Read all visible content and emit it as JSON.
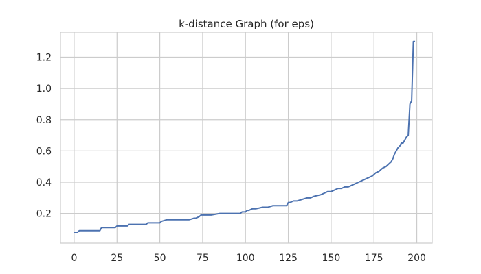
{
  "chart_data": {
    "type": "line",
    "title": "k-distance Graph (for eps)",
    "xlabel": "",
    "ylabel": "",
    "xlim": [
      -8,
      209
    ],
    "ylim": [
      0.01,
      1.36
    ],
    "grid": true,
    "x_ticks": [
      0,
      25,
      50,
      75,
      100,
      125,
      150,
      175,
      200
    ],
    "y_ticks": [
      0.2,
      0.4,
      0.6,
      0.8,
      1.0,
      1.2
    ],
    "y_tick_labels": [
      "0.2",
      "0.4",
      "0.6",
      "0.8",
      "1.0",
      "1.2"
    ],
    "colors": {
      "line": "#4c72b0",
      "grid": "#cccccc",
      "axes_edge": "#cccccc",
      "text": "#262626"
    },
    "series": [
      {
        "x": [
          0,
          2,
          3,
          9,
          15,
          16,
          24,
          25,
          31,
          32,
          39,
          42,
          43,
          48,
          50,
          51,
          54,
          58,
          65,
          67,
          70,
          71,
          73,
          74,
          80,
          85,
          90,
          92,
          97,
          98,
          100,
          101,
          102,
          104,
          106,
          110,
          113,
          116,
          119,
          124,
          125,
          126,
          128,
          130,
          133,
          136,
          138,
          140,
          144,
          146,
          148,
          150,
          152,
          154,
          156,
          158,
          160,
          162,
          164,
          166,
          168,
          170,
          172,
          174,
          176,
          178,
          180,
          182,
          184,
          185,
          186,
          187,
          188,
          189,
          190,
          191,
          192,
          193,
          194,
          195,
          196,
          197,
          198,
          199
        ],
        "y": [
          0.08,
          0.08,
          0.09,
          0.09,
          0.09,
          0.11,
          0.11,
          0.12,
          0.12,
          0.13,
          0.13,
          0.13,
          0.14,
          0.14,
          0.14,
          0.15,
          0.16,
          0.16,
          0.16,
          0.16,
          0.17,
          0.17,
          0.18,
          0.19,
          0.19,
          0.2,
          0.2,
          0.2,
          0.2,
          0.21,
          0.21,
          0.22,
          0.22,
          0.23,
          0.23,
          0.24,
          0.24,
          0.25,
          0.25,
          0.25,
          0.27,
          0.27,
          0.28,
          0.28,
          0.29,
          0.3,
          0.3,
          0.31,
          0.32,
          0.33,
          0.34,
          0.34,
          0.35,
          0.36,
          0.36,
          0.37,
          0.37,
          0.38,
          0.39,
          0.4,
          0.41,
          0.42,
          0.43,
          0.44,
          0.46,
          0.47,
          0.49,
          0.5,
          0.52,
          0.53,
          0.55,
          0.58,
          0.6,
          0.62,
          0.63,
          0.65,
          0.65,
          0.67,
          0.69,
          0.7,
          0.9,
          0.92,
          1.3,
          1.3
        ]
      }
    ]
  }
}
